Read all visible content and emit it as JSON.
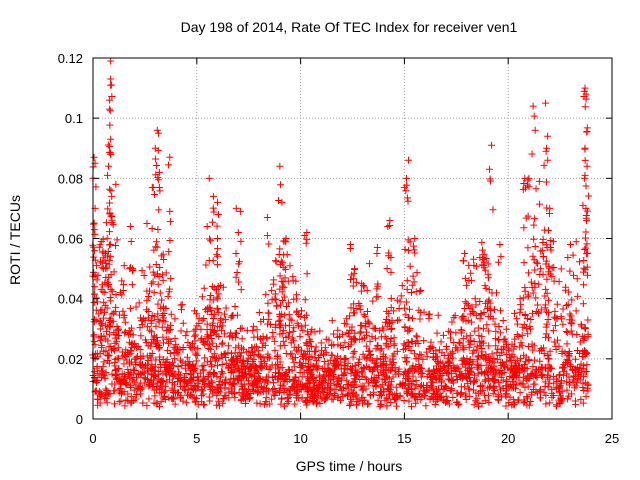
{
  "chart_data": {
    "type": "scatter",
    "title": "Day 198 of 2014, Rate Of TEC Index for receiver ven1",
    "xlabel": "GPS time / hours",
    "ylabel": "ROTI / TECUs",
    "xlim": [
      0,
      25
    ],
    "ylim": [
      0,
      0.12
    ],
    "xticks": [
      0,
      5,
      10,
      15,
      20,
      25
    ],
    "xtick_labels": [
      "0",
      "5",
      "10",
      "15",
      "20",
      "25"
    ],
    "yticks": [
      0,
      0.02,
      0.04,
      0.06,
      0.08,
      0.1,
      0.12
    ],
    "ytick_labels": [
      "0",
      "0.02",
      "0.04",
      "0.06",
      "0.08",
      "0.1",
      "0.12"
    ],
    "grid": true,
    "marker": "+",
    "series": [
      {
        "name": "ROTI",
        "color": "#ff0000",
        "description": "Dense cloud of ROTI values mostly between 0.002 and 0.03 TECU/min across 0-24 h, with sporadic spikes up to ~0.119",
        "spikes": [
          {
            "x": 0.05,
            "y": 0.087
          },
          {
            "x": 0.1,
            "y": 0.085
          },
          {
            "x": 0.1,
            "y": 0.07
          },
          {
            "x": 0.4,
            "y": 0.059
          },
          {
            "x": 0.5,
            "y": 0.05
          },
          {
            "x": 0.7,
            "y": 0.081
          },
          {
            "x": 0.75,
            "y": 0.084
          },
          {
            "x": 0.8,
            "y": 0.106
          },
          {
            "x": 0.8,
            "y": 0.103
          },
          {
            "x": 0.85,
            "y": 0.113
          },
          {
            "x": 0.85,
            "y": 0.119
          },
          {
            "x": 0.85,
            "y": 0.093
          },
          {
            "x": 0.9,
            "y": 0.074
          },
          {
            "x": 1.1,
            "y": 0.078
          },
          {
            "x": 1.5,
            "y": 0.051
          },
          {
            "x": 1.8,
            "y": 0.064
          },
          {
            "x": 1.9,
            "y": 0.05
          },
          {
            "x": 2.6,
            "y": 0.065
          },
          {
            "x": 2.9,
            "y": 0.077
          },
          {
            "x": 3.0,
            "y": 0.09
          },
          {
            "x": 3.1,
            "y": 0.096
          },
          {
            "x": 3.15,
            "y": 0.095
          },
          {
            "x": 3.2,
            "y": 0.082
          },
          {
            "x": 3.4,
            "y": 0.053
          },
          {
            "x": 3.7,
            "y": 0.087
          },
          {
            "x": 3.7,
            "y": 0.069
          },
          {
            "x": 4.3,
            "y": 0.038
          },
          {
            "x": 5.5,
            "y": 0.064
          },
          {
            "x": 5.6,
            "y": 0.08
          },
          {
            "x": 5.8,
            "y": 0.074
          },
          {
            "x": 6.0,
            "y": 0.072
          },
          {
            "x": 6.0,
            "y": 0.06
          },
          {
            "x": 6.9,
            "y": 0.07
          },
          {
            "x": 7.1,
            "y": 0.069
          },
          {
            "x": 7.0,
            "y": 0.062
          },
          {
            "x": 8.4,
            "y": 0.067
          },
          {
            "x": 9.0,
            "y": 0.084
          },
          {
            "x": 9.1,
            "y": 0.072
          },
          {
            "x": 9.3,
            "y": 0.06
          },
          {
            "x": 10.3,
            "y": 0.062
          },
          {
            "x": 10.2,
            "y": 0.061
          },
          {
            "x": 12.4,
            "y": 0.058
          },
          {
            "x": 12.6,
            "y": 0.05
          },
          {
            "x": 13.7,
            "y": 0.057
          },
          {
            "x": 14.3,
            "y": 0.066
          },
          {
            "x": 14.2,
            "y": 0.064
          },
          {
            "x": 15.0,
            "y": 0.077
          },
          {
            "x": 15.2,
            "y": 0.086
          },
          {
            "x": 15.1,
            "y": 0.08
          },
          {
            "x": 15.5,
            "y": 0.06
          },
          {
            "x": 17.9,
            "y": 0.055
          },
          {
            "x": 18.8,
            "y": 0.053
          },
          {
            "x": 19.2,
            "y": 0.091
          },
          {
            "x": 19.1,
            "y": 0.083
          },
          {
            "x": 19.6,
            "y": 0.058
          },
          {
            "x": 20.8,
            "y": 0.08
          },
          {
            "x": 21.0,
            "y": 0.08
          },
          {
            "x": 21.2,
            "y": 0.104
          },
          {
            "x": 21.3,
            "y": 0.096
          },
          {
            "x": 21.5,
            "y": 0.079
          },
          {
            "x": 21.8,
            "y": 0.105
          },
          {
            "x": 21.9,
            "y": 0.094
          },
          {
            "x": 21.85,
            "y": 0.09
          },
          {
            "x": 22.0,
            "y": 0.07
          },
          {
            "x": 23.0,
            "y": 0.058
          },
          {
            "x": 23.7,
            "y": 0.11
          },
          {
            "x": 23.75,
            "y": 0.108
          },
          {
            "x": 23.7,
            "y": 0.09
          },
          {
            "x": 23.8,
            "y": 0.084
          },
          {
            "x": 23.7,
            "y": 0.081
          },
          {
            "x": 23.6,
            "y": 0.071
          }
        ]
      }
    ]
  }
}
